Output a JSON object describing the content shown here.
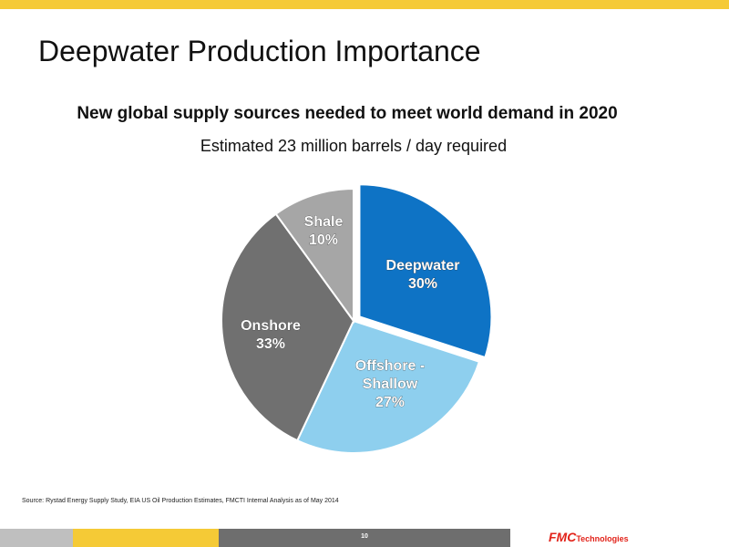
{
  "header": {
    "title": "Deepwater Production Importance",
    "subtitle": "New global supply sources needed to meet world demand in 2020"
  },
  "chart_data": {
    "type": "pie",
    "subtitle": "Estimated 23 million barrels / day required",
    "slices": [
      {
        "label": "Deepwater",
        "value_label": "30%",
        "value": 30,
        "color": "#0E73C5"
      },
      {
        "label": "Offshore - Shallow",
        "value_label": "27%",
        "value": 27,
        "color": "#8ECFEE"
      },
      {
        "label": "Onshore",
        "value_label": "33%",
        "value": 33,
        "color": "#707070"
      },
      {
        "label": "Shale",
        "value_label": "10%",
        "value": 10,
        "color": "#A6A6A6"
      }
    ]
  },
  "footer": {
    "source": "Source: Rystad  Energy Supply Study, EIA US Oil Production Estimates,  FMCTI Internal Analysis as of May 2014",
    "page_number": "10",
    "logo": {
      "mark": "FMC",
      "text": "Technologies"
    },
    "colors": {
      "stripe_yellow": "#F5CA36",
      "bar_light": "#BFBFBF",
      "bar_dark": "#6E6E6E",
      "brand_red": "#E2231A"
    }
  }
}
